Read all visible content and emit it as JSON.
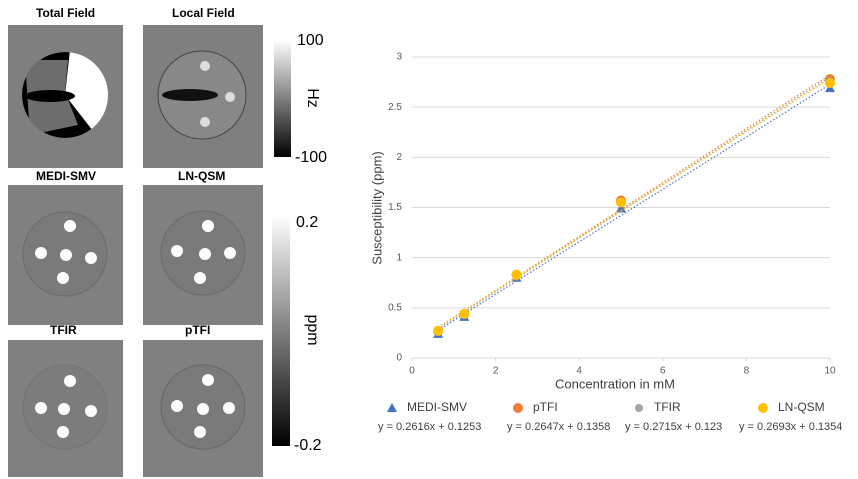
{
  "panels": [
    "Total Field",
    "Local Field",
    "MEDI-SMV",
    "LN-QSM",
    "TFIR",
    "pTFI"
  ],
  "colorbars": [
    {
      "ticks": [
        100,
        -100
      ],
      "label": "Hz"
    },
    {
      "ticks": [
        0.2,
        -0.2
      ],
      "label": "ppm"
    }
  ],
  "chart_data": {
    "type": "scatter",
    "x_label": "Concentration in mM",
    "y_label": "Susceptibility (ppm)",
    "x": [
      0.625,
      1.25,
      2.5,
      5,
      10
    ],
    "series": [
      {
        "name": "MEDI-SMV",
        "color": "#4472c4",
        "marker": "triangle",
        "values": [
          0.24,
          0.41,
          0.8,
          1.49,
          2.69
        ],
        "trendline": "y = 0.2616x + 0.1253"
      },
      {
        "name": "pTFI",
        "color": "#ed7d31",
        "marker": "circle",
        "values": [
          0.27,
          0.44,
          0.83,
          1.57,
          2.78
        ],
        "trendline": "y = 0.2647x + 0.1358"
      },
      {
        "name": "TFIR",
        "color": "#a5a5a5",
        "marker": "circle",
        "values": [
          0.26,
          0.43,
          0.81,
          1.55,
          2.76
        ],
        "trendline": "y = 0.2715x + 0.123"
      },
      {
        "name": "LN-QSM",
        "color": "#ffc000",
        "marker": "circle",
        "values": [
          0.27,
          0.44,
          0.83,
          1.55,
          2.74
        ],
        "trendline": "y = 0.2693x + 0.1354"
      }
    ],
    "xlim": [
      0,
      10
    ],
    "xticks": [
      0,
      2,
      4,
      6,
      8,
      10
    ],
    "ylim": [
      0,
      3
    ],
    "yticks": [
      0,
      0.5,
      1,
      1.5,
      2,
      2.5,
      3
    ],
    "grid": true,
    "legend": "bottom"
  }
}
